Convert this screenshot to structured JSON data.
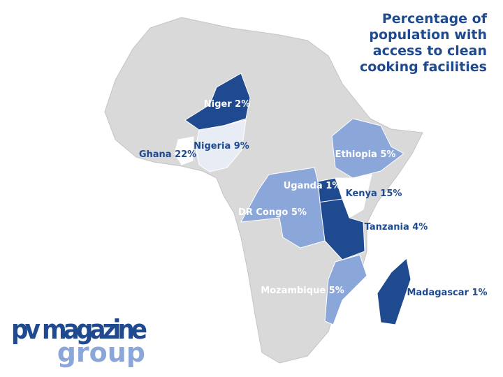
{
  "title": [
    "Percentage of",
    "population with",
    "access to clean",
    "cooking facilities"
  ],
  "regions": [
    {
      "label": "Niger 2%",
      "color": "#1f4a8f"
    },
    {
      "label": "Nigeria 9%",
      "color": "#e8edf5"
    },
    {
      "label": "Ghana 22%",
      "color": "#ffffff"
    },
    {
      "label": "Ethiopia 5%",
      "color": "#8ba6d9"
    },
    {
      "label": "Uganda 1%",
      "color": "#1f4a8f"
    },
    {
      "label": "Kenya 15%",
      "color": "#ffffff"
    },
    {
      "label": "Tanzania 4%",
      "color": "#1f4a8f"
    },
    {
      "label": "DR Congo 5%",
      "color": "#8ba6d9"
    },
    {
      "label": "Mozambique 5%",
      "color": "#8ba6d9"
    },
    {
      "label": "Madagascar 1%",
      "color": "#1f4a8f"
    }
  ],
  "logo": {
    "line1": "pv magazine",
    "line2": "group"
  }
}
